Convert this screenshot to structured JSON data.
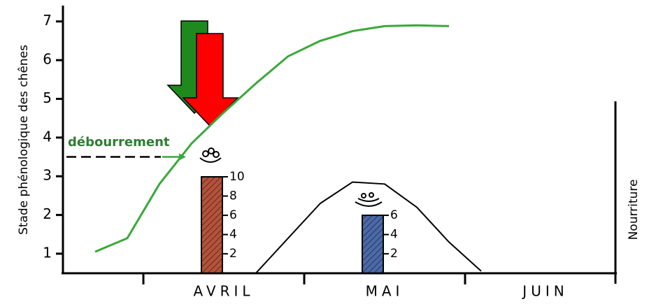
{
  "chart_data": {
    "type": "line",
    "y_axis_title": "Stade phénologique des chênes",
    "y2_axis_title": "Nourriture",
    "annotation": "débourrement",
    "annotation_value": 3.5,
    "categories": [
      null,
      null,
      null,
      null,
      "AVRIL",
      null,
      null,
      null,
      null,
      "MAI",
      null,
      null,
      null,
      null,
      "JUIN",
      null,
      null
    ],
    "ylim": [
      0.5,
      7.5
    ],
    "yticks": [
      1,
      2,
      3,
      4,
      5,
      6,
      7
    ],
    "series": [
      {
        "color": "#3aa83a",
        "values": [
          1.05,
          1.4,
          2.8,
          3.85,
          4.65,
          5.4,
          6.1,
          6.5,
          6.75,
          6.88,
          6.9,
          6.88,
          null,
          null,
          null,
          null,
          null
        ]
      },
      {
        "color": "#000000",
        "values": [
          null,
          null,
          null,
          null,
          null,
          0.5,
          1.4,
          2.3,
          2.85,
          2.8,
          2.2,
          1.3,
          0.55,
          null,
          null,
          null,
          null
        ]
      }
    ],
    "bar_ylim": [
      0,
      10
    ],
    "bar_series": [
      {
        "color": "#b5523b",
        "values": [
          null,
          null,
          null,
          null,
          10,
          null,
          null,
          null,
          null,
          null,
          null,
          null,
          null,
          null,
          null,
          null,
          null
        ],
        "yticks": [
          2,
          4,
          6,
          8,
          10
        ]
      },
      {
        "color": "#4a6aa8",
        "values": [
          null,
          null,
          null,
          null,
          null,
          null,
          null,
          null,
          null,
          6,
          null,
          null,
          null,
          null,
          null,
          null,
          null
        ],
        "yticks": [
          2,
          4,
          6
        ]
      }
    ]
  }
}
